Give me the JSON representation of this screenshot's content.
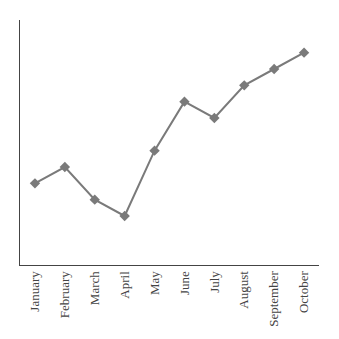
{
  "chart_data": {
    "type": "line",
    "categories": [
      "January",
      "February",
      "March",
      "April",
      "May",
      "June",
      "July",
      "August",
      "September",
      "October"
    ],
    "values": [
      55,
      56,
      54,
      53,
      57,
      60,
      59,
      61,
      62,
      63
    ],
    "color": "#7a7a7a",
    "marker": "diamond",
    "ylim": [
      50,
      65
    ],
    "grid": false,
    "tick_labels": "x"
  }
}
